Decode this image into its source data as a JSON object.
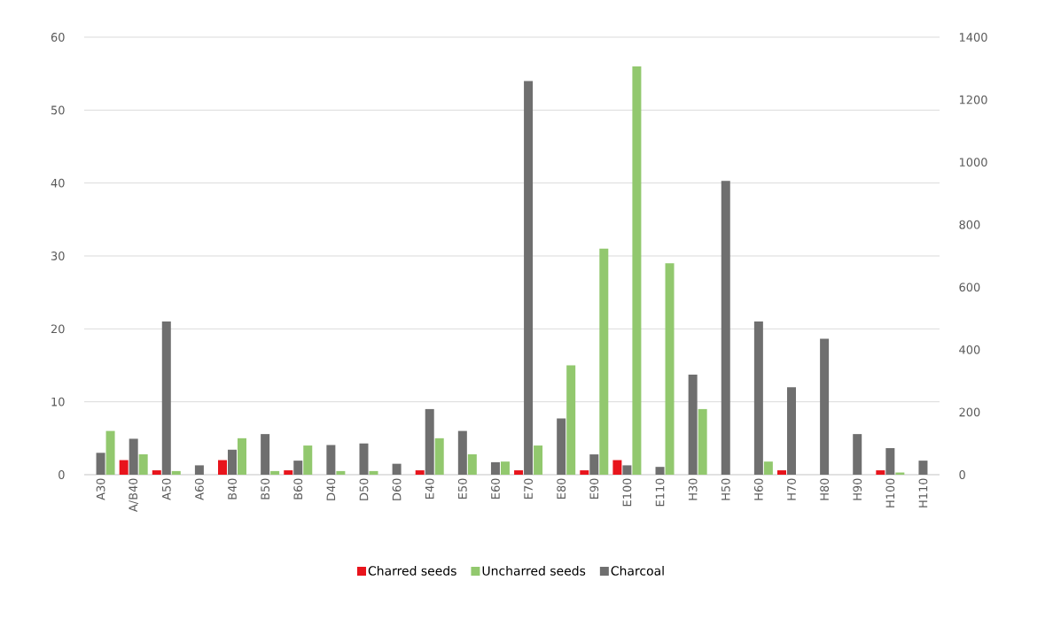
{
  "chart_data": {
    "type": "bar",
    "categories": [
      "A30",
      "A/B40",
      "A50",
      "A60",
      "B40",
      "B50",
      "B60",
      "D40",
      "D50",
      "D60",
      "E40",
      "E50",
      "E60",
      "E70",
      "E80",
      "E90",
      "E100",
      "E110",
      "H30",
      "H50",
      "H60",
      "H70",
      "H80",
      "H90",
      "H100",
      "H110"
    ],
    "series": [
      {
        "name": "Charred seeds",
        "color": "#e8141c",
        "values": [
          0,
          2,
          0.6,
          0,
          2,
          0,
          0.6,
          0,
          0,
          0,
          0.6,
          0,
          0,
          0.6,
          0,
          0.6,
          2,
          0,
          0,
          0,
          0,
          0.6,
          0,
          0,
          0.6,
          0
        ]
      },
      {
        "name": "Uncharred seeds",
        "color": "#92c86e",
        "values": [
          6,
          2.8,
          0.5,
          0,
          5,
          0.5,
          4,
          0.5,
          0.5,
          0,
          5,
          2.8,
          1.8,
          4,
          15,
          31,
          56,
          29,
          9,
          0,
          1.8,
          0,
          0,
          0,
          0.3,
          0
        ]
      },
      {
        "name": "Charcoal",
        "color": "#6f6f6f",
        "axis": "y2",
        "values": [
          70,
          115,
          490,
          30,
          80,
          130,
          45,
          95,
          100,
          35,
          210,
          140,
          40,
          1260,
          180,
          65,
          30,
          25,
          320,
          940,
          490,
          280,
          435,
          130,
          85,
          45
        ]
      }
    ],
    "ylim": [
      0,
      60
    ],
    "yticks": [
      0,
      10,
      20,
      30,
      40,
      50,
      60
    ],
    "y2lim": [
      0,
      1400
    ],
    "y2ticks": [
      0,
      200,
      400,
      600,
      800,
      1000,
      1200,
      1400
    ],
    "grid": "y",
    "legend": "bottom"
  }
}
